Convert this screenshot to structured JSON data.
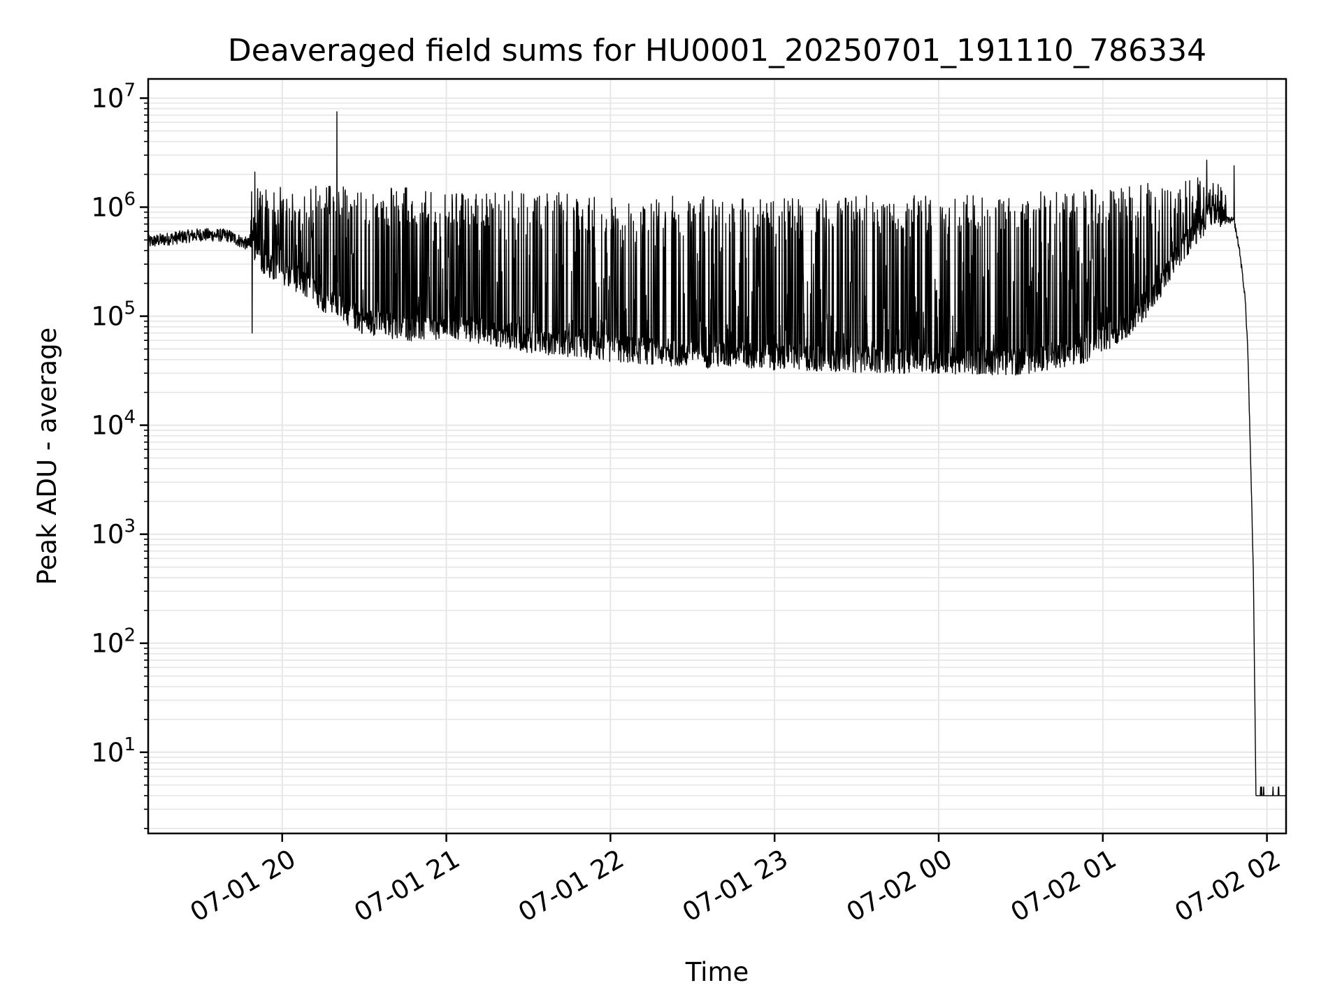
{
  "chart_data": {
    "type": "line",
    "title": "Deaveraged field sums for HU0001_20250701_191110_786334",
    "xlabel": "Time",
    "ylabel": "Peak ADU - average",
    "yscale": "log",
    "ylim": [
      1.8,
      15000000
    ],
    "xlim": [
      "2025-07-01 19:11",
      "2025-07-02 02:07"
    ],
    "grid": "on (major and minor, light gray)",
    "x_ticks": [
      {
        "value": "2025-07-01 20:00",
        "label": "07-01 20"
      },
      {
        "value": "2025-07-01 21:00",
        "label": "07-01 21"
      },
      {
        "value": "2025-07-01 22:00",
        "label": "07-01 22"
      },
      {
        "value": "2025-07-01 23:00",
        "label": "07-01 23"
      },
      {
        "value": "2025-07-02 00:00",
        "label": "07-02 00"
      },
      {
        "value": "2025-07-02 01:00",
        "label": "07-02 01"
      },
      {
        "value": "2025-07-02 02:00",
        "label": "07-02 02"
      }
    ],
    "y_ticks": [
      {
        "value": 10,
        "base": "10",
        "exp": "1"
      },
      {
        "value": 100,
        "base": "10",
        "exp": "2"
      },
      {
        "value": 1000,
        "base": "10",
        "exp": "3"
      },
      {
        "value": 10000,
        "base": "10",
        "exp": "4"
      },
      {
        "value": 100000,
        "base": "10",
        "exp": "5"
      },
      {
        "value": 1000000,
        "base": "10",
        "exp": "6"
      },
      {
        "value": 10000000,
        "base": "10",
        "exp": "7"
      }
    ],
    "series": [
      {
        "color": "#000000",
        "baseline_points": [
          {
            "x": "2025-07-01 19:11",
            "y": 480000
          },
          {
            "x": "2025-07-01 19:20",
            "y": 520000
          },
          {
            "x": "2025-07-01 19:30",
            "y": 560000
          },
          {
            "x": "2025-07-01 19:40",
            "y": 550000
          },
          {
            "x": "2025-07-01 19:48",
            "y": 450000
          },
          {
            "x": "2025-07-01 19:55",
            "y": 250000
          },
          {
            "x": "2025-07-01 20:05",
            "y": 200000
          },
          {
            "x": "2025-07-01 20:15",
            "y": 130000
          },
          {
            "x": "2025-07-01 20:30",
            "y": 80000
          },
          {
            "x": "2025-07-01 20:45",
            "y": 70000
          },
          {
            "x": "2025-07-01 21:00",
            "y": 70000
          },
          {
            "x": "2025-07-01 21:15",
            "y": 65000
          },
          {
            "x": "2025-07-01 21:30",
            "y": 55000
          },
          {
            "x": "2025-07-01 21:45",
            "y": 50000
          },
          {
            "x": "2025-07-01 22:00",
            "y": 45000
          },
          {
            "x": "2025-07-01 22:30",
            "y": 40000
          },
          {
            "x": "2025-07-01 23:00",
            "y": 38000
          },
          {
            "x": "2025-07-01 23:30",
            "y": 36000
          },
          {
            "x": "2025-07-02 00:00",
            "y": 35000
          },
          {
            "x": "2025-07-02 00:30",
            "y": 34000
          },
          {
            "x": "2025-07-02 00:55",
            "y": 45000
          },
          {
            "x": "2025-07-02 01:10",
            "y": 80000
          },
          {
            "x": "2025-07-02 01:20",
            "y": 150000
          },
          {
            "x": "2025-07-02 01:30",
            "y": 400000
          },
          {
            "x": "2025-07-02 01:40",
            "y": 800000
          },
          {
            "x": "2025-07-02 01:48",
            "y": 750000
          },
          {
            "x": "2025-07-02 01:50",
            "y": 400000
          },
          {
            "x": "2025-07-02 01:52",
            "y": 150000
          },
          {
            "x": "2025-07-02 01:53",
            "y": 50000
          },
          {
            "x": "2025-07-02 01:54",
            "y": 5000
          },
          {
            "x": "2025-07-02 01:55",
            "y": 500
          },
          {
            "x": "2025-07-02 01:56",
            "y": 4
          },
          {
            "x": "2025-07-02 02:07",
            "y": 4
          }
        ],
        "peak_envelope": [
          {
            "x": "2025-07-01 19:48",
            "y": 1500000
          },
          {
            "x": "2025-07-01 20:30",
            "y": 1600000
          },
          {
            "x": "2025-07-01 21:30",
            "y": 1400000
          },
          {
            "x": "2025-07-01 22:00",
            "y": 1300000
          },
          {
            "x": "2025-07-01 23:00",
            "y": 1250000
          },
          {
            "x": "2025-07-02 00:00",
            "y": 1300000
          },
          {
            "x": "2025-07-02 01:00",
            "y": 1500000
          },
          {
            "x": "2025-07-02 01:45",
            "y": 2000000
          }
        ],
        "notable_spikes": [
          {
            "x": "2025-07-01 19:50",
            "y": 2100000
          },
          {
            "x": "2025-07-01 20:20",
            "y": 7500000
          },
          {
            "x": "2025-07-02 01:38",
            "y": 2700000
          },
          {
            "x": "2025-07-02 01:48",
            "y": 2400000
          }
        ],
        "notable_dips": [
          {
            "x": "2025-07-01 19:49",
            "y": 70000
          }
        ]
      }
    ]
  }
}
